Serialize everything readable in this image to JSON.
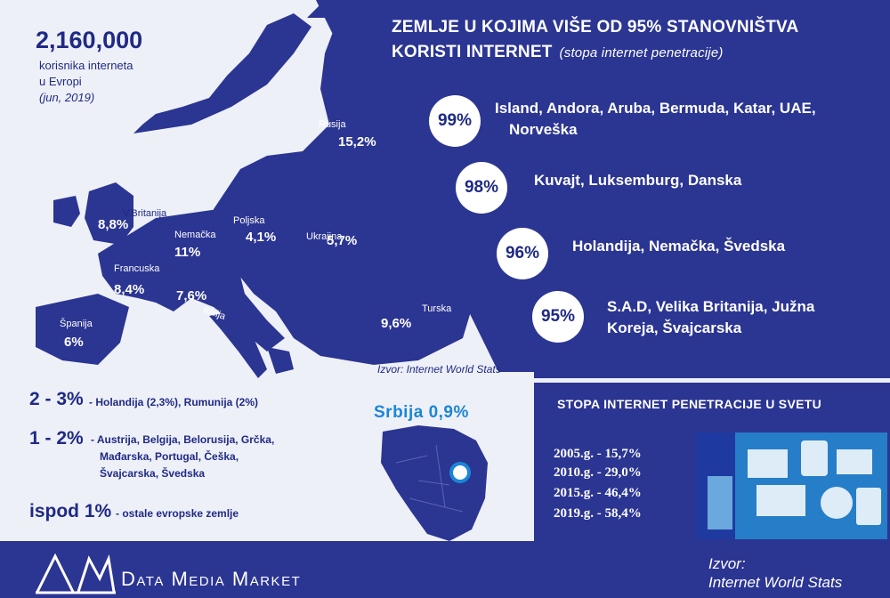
{
  "left": {
    "total_number": "2,160,000",
    "total_line1": "korisnika interneta",
    "total_line2": "u Evropi",
    "total_line3": "(jun, 2019)",
    "countries": [
      {
        "name": "Rusija",
        "pct": "15,2%"
      },
      {
        "name": "V.Britanija",
        "pct": "8,8%"
      },
      {
        "name": "Nemačka",
        "pct": "11%"
      },
      {
        "name": "Poljska",
        "pct": "4,1%"
      },
      {
        "name": "Ukrajina",
        "pct": "5,7%"
      },
      {
        "name": "Francuska",
        "pct": "8,4%"
      },
      {
        "name": "Italija",
        "pct": "7,6%"
      },
      {
        "name": "Španija",
        "pct": "6%"
      },
      {
        "name": "Turska",
        "pct": "9,6%"
      }
    ],
    "map_source": "Izvor: Internet World Stats"
  },
  "top_panel": {
    "title_line1": "ZEMLJE U KOJIMA VIŠE OD 95% STANOVNIŠTVA",
    "title_line2": "KORISTI INTERNET",
    "title_sub": "(stopa internet penetracije)",
    "rows": [
      {
        "pct": "99%",
        "line1": "Island, Andora, Aruba, Bermuda, Katar, UAE,",
        "line2": "Norveška"
      },
      {
        "pct": "98%",
        "line1": "Kuvajt, Luksemburg, Danska",
        "line2": ""
      },
      {
        "pct": "96%",
        "line1": "Holandija, Nemačka, Švedska",
        "line2": ""
      },
      {
        "pct": "95%",
        "line1": "S.A.D, Velika Britanija, Južna",
        "line2": "Koreja, Švajcarska"
      }
    ]
  },
  "ranges": [
    {
      "label": "2 - 3%",
      "lines": [
        "- Holandija (2,3%), Rumunija (2%)"
      ]
    },
    {
      "label": "1 - 2%",
      "lines": [
        "- Austrija, Belgija, Belorusija, Grčka,",
        "Mađarska, Portugal, Češka,",
        "Švajcarska, Švedska"
      ]
    },
    {
      "label": "ispod 1%",
      "lines": [
        "- ostale evropske zemlje"
      ]
    }
  ],
  "serbia": {
    "label": "Srbija  0,9%"
  },
  "world": {
    "title": "STOPA INTERNET PENETRACIJE U SVETU",
    "years": [
      "2005.g.  -  15,7%",
      "2010.g.  -  29,0%",
      "2015.g.  -  46,4%",
      "2019.g.  -  58,4%"
    ]
  },
  "footer": {
    "brand": "Data Media Market",
    "source_line1": "Izvor:",
    "source_line2": "Internet World Stats"
  },
  "colors": {
    "navy": "#2b3592",
    "navy_dark": "#1f2a85",
    "accent": "#1a86d6"
  }
}
